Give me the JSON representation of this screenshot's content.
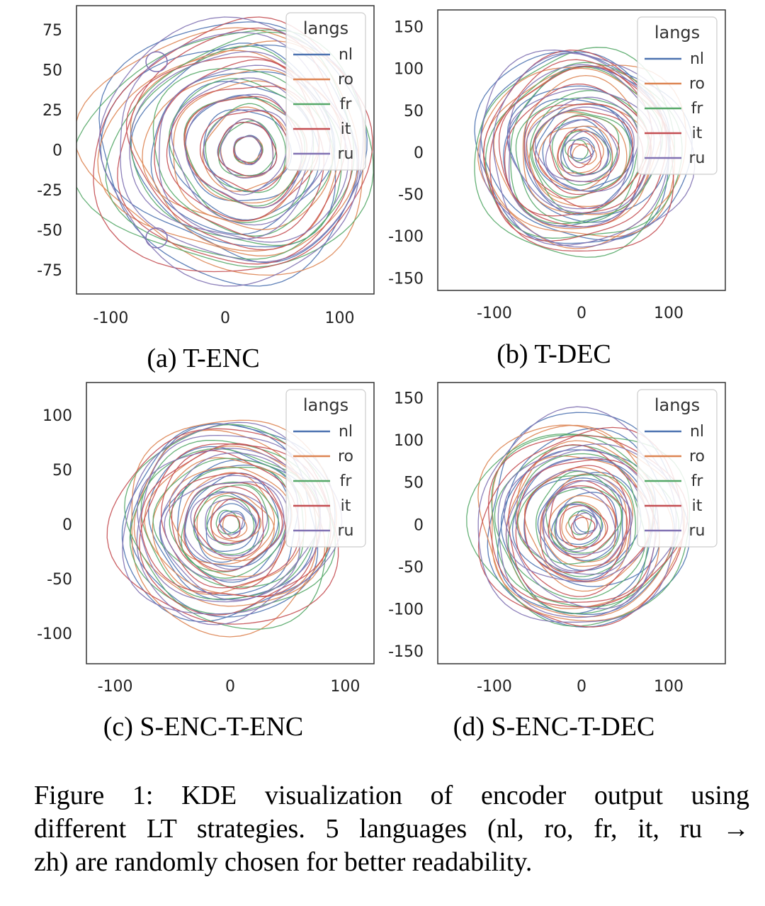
{
  "colors": {
    "nl": "#4c72b0",
    "ro": "#dd8452",
    "fr": "#55a868",
    "it": "#c44e52",
    "ru": "#8172b3"
  },
  "caption": {
    "line1": "Figure 1:  KDE visualization of encoder output using",
    "line2": "different LT strategies. 5 languages (nl, ro, fr, it, ru →",
    "line3": "zh) are randomly chosen for better readability."
  },
  "chart_data": [
    {
      "type": "kde-contour",
      "caption": "(a) T-ENC",
      "legend": {
        "title": "langs",
        "position": "top-right",
        "entries": [
          "nl",
          "ro",
          "fr",
          "it",
          "ru"
        ]
      },
      "xticks": [
        "-100",
        "0",
        "100"
      ],
      "yticks": [
        "75",
        "50",
        "25",
        "0",
        "-25",
        "-50",
        "-75"
      ],
      "xlim": [
        -130,
        130
      ],
      "ylim": [
        -90,
        90
      ],
      "grid": false,
      "series": [
        {
          "name": "nl"
        },
        {
          "name": "ro"
        },
        {
          "name": "fr"
        },
        {
          "name": "it"
        },
        {
          "name": "ru"
        }
      ],
      "center": [
        20,
        0
      ],
      "max_radius": 100,
      "levels": 9,
      "jitter": 0
    },
    {
      "type": "kde-contour",
      "caption": "(b) T-DEC",
      "legend": {
        "title": "langs",
        "position": "top-right",
        "entries": [
          "nl",
          "ro",
          "fr",
          "it",
          "ru"
        ]
      },
      "xticks": [
        "-100",
        "0",
        "100"
      ],
      "yticks": [
        "150",
        "100",
        "50",
        "0",
        "-50",
        "-100",
        "-150"
      ],
      "xlim": [
        -165,
        165
      ],
      "ylim": [
        -165,
        170
      ],
      "grid": false,
      "series": [
        {
          "name": "nl"
        },
        {
          "name": "ro"
        },
        {
          "name": "fr"
        },
        {
          "name": "it"
        },
        {
          "name": "ru"
        }
      ],
      "center": [
        0,
        0
      ],
      "max_radius": 118,
      "levels": 9,
      "jitter": 6
    },
    {
      "type": "kde-contour",
      "caption": "(c) S-ENC-T-ENC",
      "legend": {
        "title": "langs",
        "position": "top-right",
        "entries": [
          "nl",
          "ro",
          "fr",
          "it",
          "ru"
        ]
      },
      "xticks": [
        "-100",
        "0",
        "100"
      ],
      "yticks": [
        "100",
        "50",
        "0",
        "-50",
        "-100"
      ],
      "xlim": [
        -125,
        125
      ],
      "ylim": [
        -128,
        130
      ],
      "grid": false,
      "series": [
        {
          "name": "nl"
        },
        {
          "name": "ro"
        },
        {
          "name": "fr"
        },
        {
          "name": "it"
        },
        {
          "name": "ru"
        }
      ],
      "center": [
        0,
        0
      ],
      "max_radius": 93,
      "levels": 9,
      "jitter": 4
    },
    {
      "type": "kde-contour",
      "caption": "(d) S-ENC-T-DEC",
      "legend": {
        "title": "langs",
        "position": "top-right",
        "entries": [
          "nl",
          "ro",
          "fr",
          "it",
          "ru"
        ]
      },
      "xticks": [
        "-100",
        "0",
        "100"
      ],
      "yticks": [
        "150",
        "100",
        "50",
        "0",
        "-50",
        "-100",
        "-150"
      ],
      "xlim": [
        -165,
        165
      ],
      "ylim": [
        -165,
        168
      ],
      "grid": false,
      "series": [
        {
          "name": "nl"
        },
        {
          "name": "ro"
        },
        {
          "name": "fr"
        },
        {
          "name": "it"
        },
        {
          "name": "ru"
        }
      ],
      "center": [
        0,
        0
      ],
      "max_radius": 118,
      "levels": 9,
      "jitter": 6
    }
  ]
}
